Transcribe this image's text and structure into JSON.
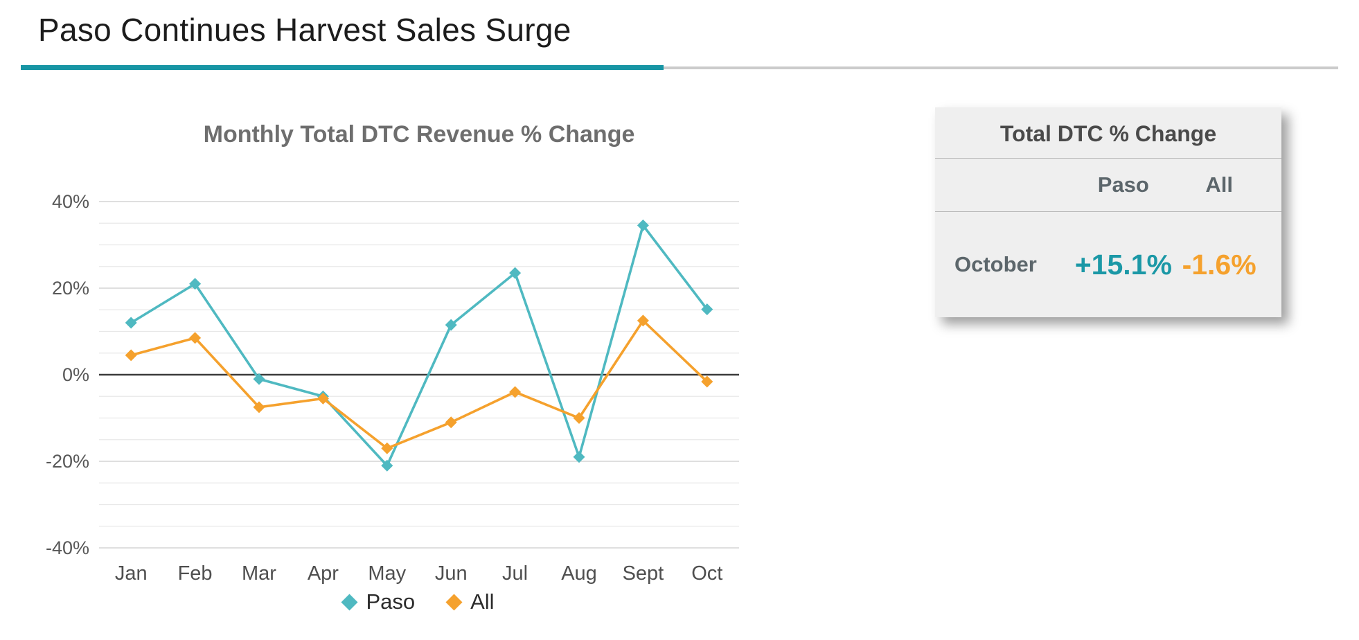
{
  "page": {
    "title": "Paso Continues Harvest Sales Surge"
  },
  "colors": {
    "header_accent": "#1795A4",
    "header_rule_gray": "#cbcbcb",
    "paso": "#4FB9C1",
    "all": "#F5A12D",
    "paso_dark": "#1B98A6"
  },
  "chart_data": {
    "type": "line",
    "title": "Monthly Total DTC Revenue % Change",
    "categories": [
      "Jan",
      "Feb",
      "Mar",
      "Apr",
      "May",
      "Jun",
      "Jul",
      "Aug",
      "Sept",
      "Oct"
    ],
    "series": [
      {
        "name": "Paso",
        "color": "#4FB9C1",
        "values": [
          12,
          21,
          -1,
          -5,
          -21,
          11.5,
          23.5,
          -19,
          34.5,
          15.1
        ]
      },
      {
        "name": "All",
        "color": "#F5A12D",
        "values": [
          4.5,
          8.5,
          -7.5,
          -5.5,
          -17,
          -11,
          -4,
          -10,
          12.5,
          -1.6
        ]
      }
    ],
    "ylim": [
      -40,
      40
    ],
    "yticks_major": [
      40,
      20,
      0,
      -20,
      -40
    ],
    "ytick_labels": [
      "40%",
      "20%",
      "0%",
      "-20%",
      "-40%"
    ],
    "ytick_minor_step": 5,
    "grid": true,
    "zero_line": true,
    "marker": "diamond",
    "legend_position": "bottom"
  },
  "summary_card": {
    "title": "Total DTC % Change",
    "columns": [
      "Paso",
      "All"
    ],
    "row": {
      "label": "October",
      "paso_value": "+15.1%",
      "all_value": "-1.6%"
    }
  }
}
